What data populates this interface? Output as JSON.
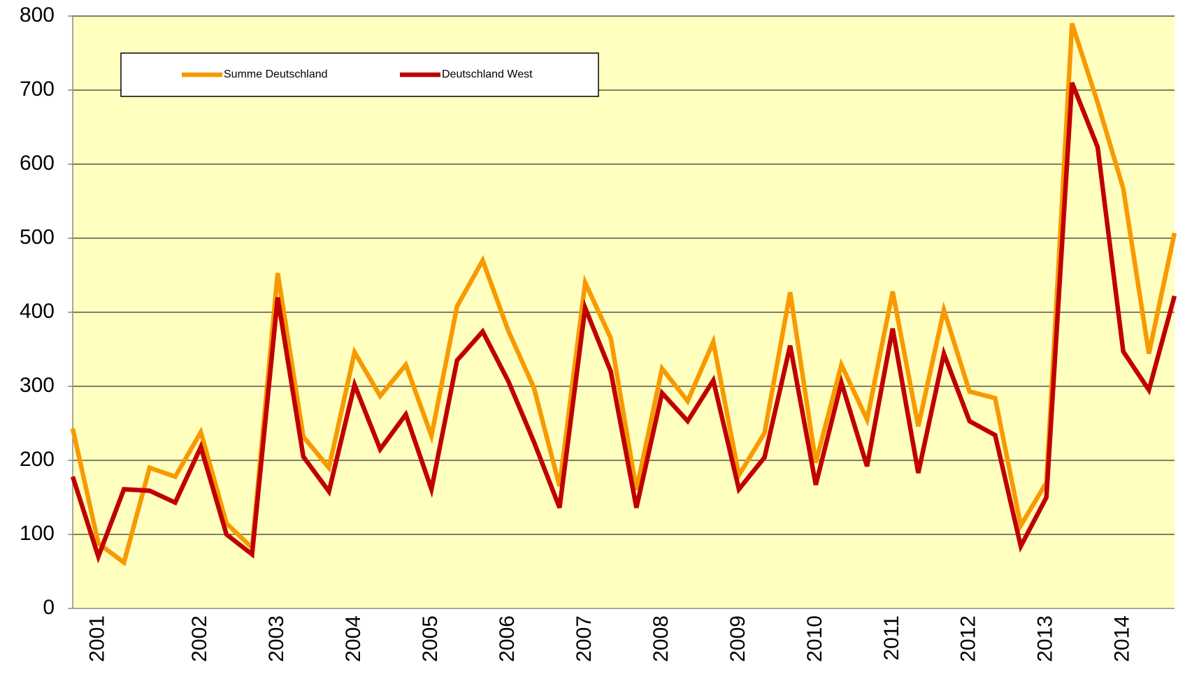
{
  "chart_data": {
    "type": "line",
    "categories": [
      null,
      "2001",
      null,
      null,
      null,
      "2002",
      null,
      null,
      "2003",
      null,
      null,
      "2004",
      null,
      null,
      "2005",
      null,
      null,
      "2006",
      null,
      null,
      "2007",
      null,
      null,
      "2008",
      null,
      null,
      "2009",
      null,
      null,
      "2010",
      null,
      null,
      "2011",
      null,
      null,
      "2012",
      null,
      null,
      "2013",
      null,
      null,
      "2014",
      null,
      null
    ],
    "series": [
      {
        "name": "Summe Deutschland",
        "color": "#f79a00",
        "values": [
          243,
          88,
          62,
          190,
          178,
          238,
          115,
          82,
          453,
          232,
          190,
          346,
          287,
          329,
          233,
          408,
          470,
          375,
          298,
          165,
          440,
          365,
          160,
          324,
          280,
          360,
          180,
          237,
          427,
          197,
          329,
          255,
          428,
          246,
          403,
          293,
          284,
          112,
          170,
          790,
          683,
          567,
          344,
          507
        ]
      },
      {
        "name": "Deutschland West",
        "color": "#c00000",
        "values": [
          178,
          70,
          161,
          159,
          143,
          218,
          100,
          73,
          420,
          205,
          158,
          302,
          215,
          262,
          161,
          335,
          374,
          307,
          225,
          136,
          406,
          320,
          136,
          291,
          253,
          308,
          161,
          204,
          355,
          167,
          305,
          192,
          378,
          183,
          344,
          253,
          234,
          84,
          150,
          710,
          623,
          347,
          295,
          422
        ]
      }
    ],
    "ylim": [
      0,
      800
    ],
    "yticks": [
      0,
      100,
      200,
      300,
      400,
      500,
      600,
      700,
      800
    ],
    "grid": true,
    "plot_background": "#ffffc0"
  }
}
